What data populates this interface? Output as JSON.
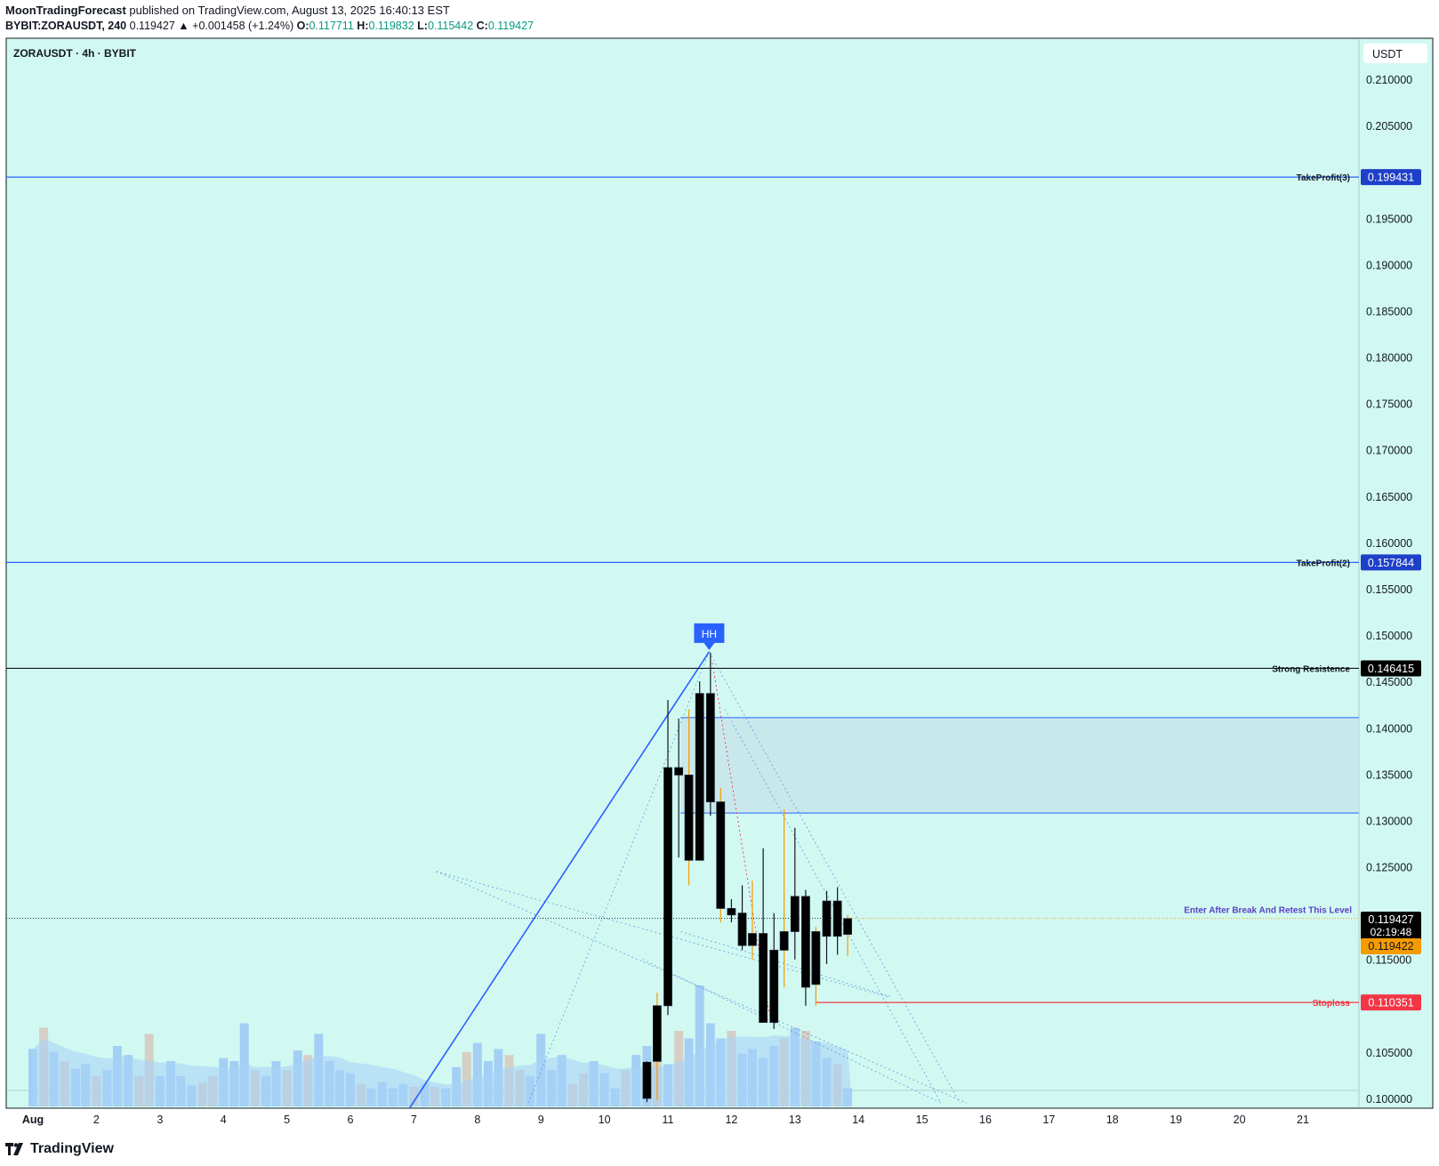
{
  "header": {
    "author": "MoonTradingForecast",
    "published": " published on TradingView.com, August 13, 2025 16:40:13 EST",
    "symbol_line": "BYBIT:ZORAUSDT, 240",
    "last": " 0.119427 ",
    "change": "▲ +0.001458 (+1.24%)",
    "o_label": " O:",
    "o": "0.117711",
    "h_label": " H:",
    "h": "0.119832",
    "l_label": " L:",
    "l": "0.115442",
    "c_label": " C:",
    "c": "0.119427"
  },
  "chart_title": "ZORAUSDT · 4h · BYBIT",
  "currency": "USDT",
  "footer": {
    "brand": "TradingView",
    "logo_icon": "tradingview-logo-icon"
  },
  "colors": {
    "background": "#d1f9f2",
    "up": "#089981",
    "trendline": "#2962ff",
    "stoploss": "#f23645",
    "entry": "#f59b00",
    "zone": "#c8e8ec"
  },
  "chart_data": {
    "type": "candlestick",
    "y_axis": {
      "ticks": [
        "0.210000",
        "0.205000",
        "0.195000",
        "0.190000",
        "0.185000",
        "0.180000",
        "0.175000",
        "0.170000",
        "0.165000",
        "0.160000",
        "0.155000",
        "0.150000",
        "0.145000",
        "0.140000",
        "0.135000",
        "0.130000",
        "0.125000",
        "0.115000",
        "0.105000",
        "0.100000"
      ],
      "ylim": [
        0.0995,
        0.2115
      ]
    },
    "x_axis": {
      "ticks": [
        "Aug",
        "2",
        "3",
        "4",
        "5",
        "6",
        "7",
        "8",
        "9",
        "10",
        "11",
        "12",
        "13",
        "14",
        "15",
        "16",
        "17",
        "18",
        "19",
        "20",
        "21"
      ]
    },
    "levels": [
      {
        "label": "TakeProfit(3)",
        "value": "0.199431",
        "y": 0.199431,
        "color": "#2962ff",
        "badge": "#1e40c8",
        "text": "#131722"
      },
      {
        "label": "TakeProfit(2)",
        "value": "0.157844",
        "y": 0.157844,
        "color": "#2962ff",
        "badge": "#1e40c8",
        "text": "#131722"
      },
      {
        "label": "Strong Resistence",
        "value": "0.146415",
        "y": 0.146415,
        "color": "#131722",
        "badge": "#000000",
        "text": "#131722"
      },
      {
        "label": "Enter After Break And Retest This Level",
        "value": "",
        "y": 0.11943,
        "color": "#f59b00",
        "badge": "",
        "text": "#5b3fc4"
      },
      {
        "label": "Stoploss",
        "value": "0.110351",
        "y": 0.110351,
        "color": "#f23645",
        "badge": "#f23645",
        "text": "#f23645"
      }
    ],
    "price_badges": [
      {
        "value": "0.119427",
        "sub": "02:19:48",
        "color": "#000000"
      },
      {
        "value": "0.119422",
        "sub": "",
        "color": "#f59b00"
      }
    ],
    "marker": {
      "label": "HH",
      "x": 11.65,
      "y": 0.1482
    },
    "zone": {
      "x_start": 11.2,
      "y_low": 0.1308,
      "y_high": 0.1411
    },
    "candles": [
      {
        "t": 10.67,
        "o": 0.1,
        "h": 0.104,
        "l": 0.0996,
        "c": 0.1039
      },
      {
        "t": 10.83,
        "o": 0.104,
        "h": 0.1114,
        "l": 0.0998,
        "c": 0.11
      },
      {
        "t": 11.0,
        "o": 0.11,
        "h": 0.143,
        "l": 0.109,
        "c": 0.1357
      },
      {
        "t": 11.17,
        "o": 0.1357,
        "h": 0.141,
        "l": 0.126,
        "c": 0.1349
      },
      {
        "t": 11.33,
        "o": 0.1349,
        "h": 0.142,
        "l": 0.123,
        "c": 0.1257
      },
      {
        "t": 11.5,
        "o": 0.1257,
        "h": 0.145,
        "l": 0.1257,
        "c": 0.1437
      },
      {
        "t": 11.67,
        "o": 0.1437,
        "h": 0.1481,
        "l": 0.1305,
        "c": 0.132
      },
      {
        "t": 11.83,
        "o": 0.132,
        "h": 0.1335,
        "l": 0.119,
        "c": 0.1205
      },
      {
        "t": 12.0,
        "o": 0.1205,
        "h": 0.1215,
        "l": 0.119,
        "c": 0.1198
      },
      {
        "t": 12.17,
        "o": 0.12,
        "h": 0.123,
        "l": 0.116,
        "c": 0.1165
      },
      {
        "t": 12.33,
        "o": 0.1165,
        "h": 0.1235,
        "l": 0.115,
        "c": 0.1178
      },
      {
        "t": 12.5,
        "o": 0.1178,
        "h": 0.127,
        "l": 0.109,
        "c": 0.1082
      },
      {
        "t": 12.67,
        "o": 0.1082,
        "h": 0.12,
        "l": 0.1075,
        "c": 0.116
      },
      {
        "t": 12.83,
        "o": 0.116,
        "h": 0.1312,
        "l": 0.112,
        "c": 0.118
      },
      {
        "t": 13.0,
        "o": 0.118,
        "h": 0.1292,
        "l": 0.115,
        "c": 0.1218
      },
      {
        "t": 13.17,
        "o": 0.1218,
        "h": 0.1225,
        "l": 0.11,
        "c": 0.112
      },
      {
        "t": 13.33,
        "o": 0.118,
        "h": 0.1185,
        "l": 0.11,
        "c": 0.1123
      },
      {
        "t": 13.5,
        "o": 0.1175,
        "h": 0.1224,
        "l": 0.1145,
        "c": 0.1213
      },
      {
        "t": 13.67,
        "o": 0.1213,
        "h": 0.1228,
        "l": 0.1155,
        "c": 0.1175
      },
      {
        "t": 13.83,
        "o": 0.1177,
        "h": 0.1198,
        "l": 0.1154,
        "c": 0.1194
      }
    ],
    "volume": [
      [
        1.0,
        0.38
      ],
      [
        1.17,
        0.52
      ],
      [
        1.33,
        0.36
      ],
      [
        1.5,
        0.3
      ],
      [
        1.67,
        0.25
      ],
      [
        1.83,
        0.28
      ],
      [
        2.0,
        0.2
      ],
      [
        2.17,
        0.24
      ],
      [
        2.33,
        0.4
      ],
      [
        2.5,
        0.34
      ],
      [
        2.67,
        0.2
      ],
      [
        2.83,
        0.48
      ],
      [
        3.0,
        0.2
      ],
      [
        3.17,
        0.3
      ],
      [
        3.33,
        0.2
      ],
      [
        3.5,
        0.14
      ],
      [
        3.67,
        0.16
      ],
      [
        3.83,
        0.2
      ],
      [
        4.0,
        0.32
      ],
      [
        4.17,
        0.3
      ],
      [
        4.33,
        0.55
      ],
      [
        4.5,
        0.24
      ],
      [
        4.67,
        0.2
      ],
      [
        4.83,
        0.3
      ],
      [
        5.0,
        0.24
      ],
      [
        5.17,
        0.37
      ],
      [
        5.33,
        0.34
      ],
      [
        5.5,
        0.48
      ],
      [
        5.67,
        0.3
      ],
      [
        5.83,
        0.24
      ],
      [
        6.0,
        0.22
      ],
      [
        6.17,
        0.15
      ],
      [
        6.33,
        0.12
      ],
      [
        6.5,
        0.16
      ],
      [
        6.67,
        0.12
      ],
      [
        6.83,
        0.15
      ],
      [
        7.0,
        0.13
      ],
      [
        7.17,
        0.15
      ],
      [
        7.33,
        0.13
      ],
      [
        7.5,
        0.12
      ],
      [
        7.67,
        0.26
      ],
      [
        7.83,
        0.36
      ],
      [
        8.0,
        0.42
      ],
      [
        8.17,
        0.3
      ],
      [
        8.33,
        0.38
      ],
      [
        8.5,
        0.34
      ],
      [
        8.67,
        0.24
      ],
      [
        8.83,
        0.2
      ],
      [
        9.0,
        0.48
      ],
      [
        9.17,
        0.24
      ],
      [
        9.33,
        0.34
      ],
      [
        9.5,
        0.15
      ],
      [
        9.67,
        0.22
      ],
      [
        9.83,
        0.3
      ],
      [
        10.0,
        0.22
      ],
      [
        10.17,
        0.12
      ],
      [
        10.33,
        0.24
      ],
      [
        10.5,
        0.34
      ],
      [
        10.67,
        0.4
      ],
      [
        10.83,
        0.34
      ],
      [
        11.0,
        0.28
      ],
      [
        11.17,
        0.5
      ],
      [
        11.33,
        0.45
      ],
      [
        11.5,
        0.8
      ],
      [
        11.67,
        0.55
      ],
      [
        11.83,
        0.45
      ],
      [
        12.0,
        0.5
      ],
      [
        12.17,
        0.35
      ],
      [
        12.33,
        0.38
      ],
      [
        12.5,
        0.32
      ],
      [
        12.67,
        0.4
      ],
      [
        12.83,
        0.45
      ],
      [
        13.0,
        0.52
      ],
      [
        13.17,
        0.5
      ],
      [
        13.33,
        0.43
      ],
      [
        13.5,
        0.32
      ],
      [
        13.67,
        0.28
      ],
      [
        13.83,
        0.12
      ]
    ]
  }
}
